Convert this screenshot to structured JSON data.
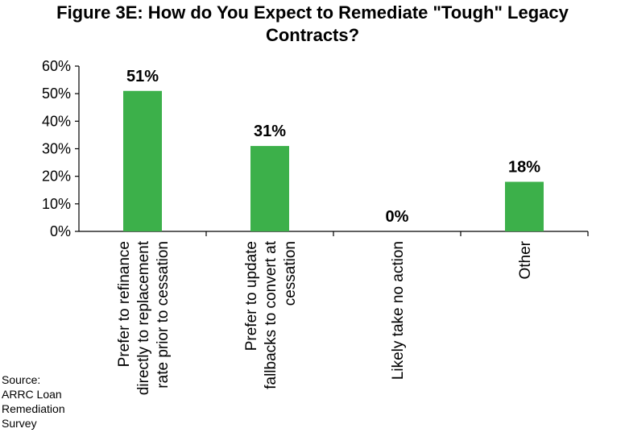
{
  "title_lines": [
    "Figure 3E: How do You Expect to Remediate \"Tough\" Legacy",
    "Contracts?"
  ],
  "source_lines": [
    "Source:",
    "ARRC Loan",
    "Remediation",
    "Survey"
  ],
  "colors": {
    "bar": "#3cb04a",
    "axis": "#000000"
  },
  "chart_data": {
    "type": "bar",
    "title": "Figure 3E: How do You Expect to Remediate \"Tough\" Legacy Contracts?",
    "categories": [
      [
        "Prefer to refinance",
        "directly to replacement",
        "rate prior to cessation"
      ],
      [
        "Prefer to update",
        "fallbacks to convert at",
        "cessation"
      ],
      [
        "Likely take no action"
      ],
      [
        "Other"
      ]
    ],
    "values": [
      51,
      31,
      0,
      18
    ],
    "data_labels": [
      "51%",
      "31%",
      "0%",
      "18%"
    ],
    "ylim": [
      0,
      60
    ],
    "yticks": [
      "0%",
      "10%",
      "20%",
      "30%",
      "40%",
      "50%",
      "60%"
    ],
    "xlabel": "",
    "ylabel": "",
    "grid": false,
    "legend": "none"
  }
}
